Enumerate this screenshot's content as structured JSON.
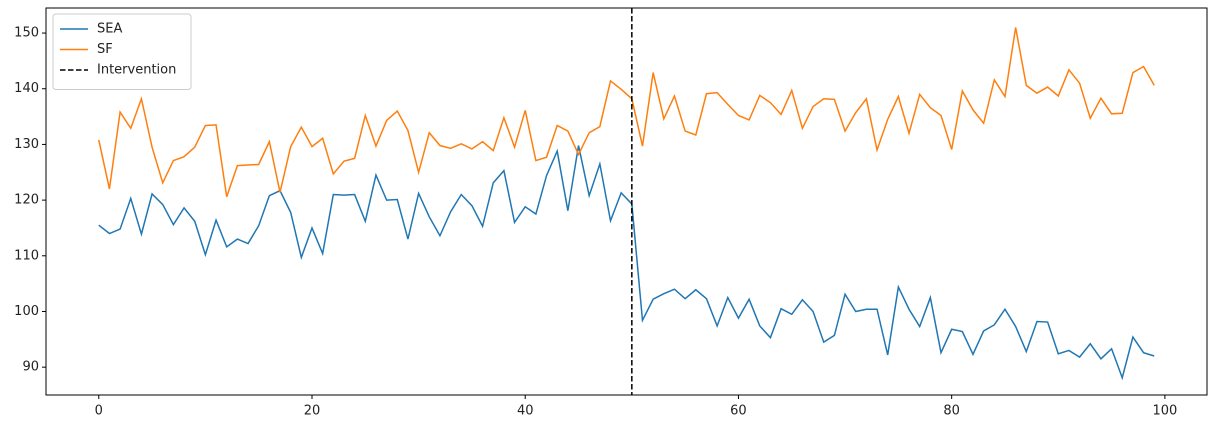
{
  "chart_data": {
    "type": "line",
    "x": [
      0,
      1,
      2,
      3,
      4,
      5,
      6,
      7,
      8,
      9,
      10,
      11,
      12,
      13,
      14,
      15,
      16,
      17,
      18,
      19,
      20,
      21,
      22,
      23,
      24,
      25,
      26,
      27,
      28,
      29,
      30,
      31,
      32,
      33,
      34,
      35,
      36,
      37,
      38,
      39,
      40,
      41,
      42,
      43,
      44,
      45,
      46,
      47,
      48,
      49,
      50,
      51,
      52,
      53,
      54,
      55,
      56,
      57,
      58,
      59,
      60,
      61,
      62,
      63,
      64,
      65,
      66,
      67,
      68,
      69,
      70,
      71,
      72,
      73,
      74,
      75,
      76,
      77,
      78,
      79,
      80,
      81,
      82,
      83,
      84,
      85,
      86,
      87,
      88,
      89,
      90,
      91,
      92,
      93,
      94,
      95,
      96,
      97,
      98,
      99
    ],
    "series": [
      {
        "name": "SEA",
        "color": "#1f77b4",
        "values": [
          115.5,
          114,
          114.8,
          120.3,
          113.9,
          121.1,
          119.2,
          115.6,
          118.6,
          116.2,
          110.2,
          116.4,
          111.6,
          113,
          112.2,
          115.4,
          120.8,
          121.7,
          117.8,
          109.7,
          115,
          110.4,
          121,
          120.9,
          121,
          116.2,
          124.5,
          120,
          120.1,
          113,
          121.2,
          117,
          113.6,
          117.9,
          121,
          119,
          115.3,
          123.1,
          125.3,
          116,
          118.8,
          117.5,
          124.4,
          128.8,
          118.1,
          129.8,
          120.8,
          126.5,
          116.3,
          121.3,
          119.3,
          98.4,
          102.2,
          103.2,
          104,
          102.3,
          103.9,
          102.3,
          97.4,
          102.5,
          98.8,
          102.2,
          97.4,
          95.3,
          100.5,
          99.5,
          102.1,
          100,
          94.5,
          95.7,
          103.1,
          100,
          100.4,
          100.4,
          92.2,
          104.4,
          100.4,
          97.3,
          102.5,
          92.6,
          96.8,
          96.4,
          92.3,
          96.5,
          97.6,
          100.4,
          97.3,
          92.8,
          98.2,
          98.1,
          92.4,
          93,
          91.8,
          94.2,
          91.5,
          93.3,
          88.1,
          95.4,
          92.6,
          92
        ]
      },
      {
        "name": "SF",
        "color": "#ff7f0e",
        "values": [
          130.8,
          122,
          135.8,
          132.9,
          138.2,
          129.5,
          123.1,
          127.1,
          127.8,
          129.5,
          133.4,
          133.5,
          120.6,
          126.2,
          126.3,
          126.4,
          130.5,
          121.4,
          129.6,
          133.1,
          129.6,
          131.1,
          124.7,
          127,
          127.5,
          135.2,
          129.7,
          134.3,
          136,
          132.5,
          125,
          132.1,
          129.8,
          129.3,
          130.1,
          129.2,
          130.5,
          128.9,
          134.8,
          129.5,
          136.1,
          127.1,
          127.7,
          133.4,
          132.4,
          128.2,
          132.1,
          133.2,
          141.4,
          139.9,
          138.2,
          129.7,
          142.9,
          134.6,
          138.7,
          132.4,
          131.7,
          139.1,
          139.3,
          137.2,
          135.2,
          134.4,
          138.8,
          137.5,
          135.4,
          139.7,
          132.9,
          136.8,
          138.2,
          138.1,
          132.4,
          135.7,
          138.2,
          129,
          134.5,
          138.6,
          132,
          139,
          136.6,
          135.2,
          129.1,
          139.6,
          136.2,
          133.8,
          141.6,
          138.6,
          151,
          140.6,
          139.2,
          140.3,
          138.7,
          143.4,
          141,
          134.7,
          138.3,
          135.5,
          135.6,
          142.9,
          144,
          140.6
        ]
      }
    ],
    "vlines": [
      {
        "name": "Intervention",
        "x": 50,
        "color": "#000000"
      }
    ],
    "xlim": [
      -4.95,
      103.95
    ],
    "ylim": [
      85,
      154.5
    ],
    "xticks": [
      0,
      20,
      40,
      60,
      80,
      100
    ],
    "yticks": [
      90,
      100,
      110,
      120,
      130,
      140,
      150
    ],
    "legend": "upper left",
    "grid": false
  }
}
